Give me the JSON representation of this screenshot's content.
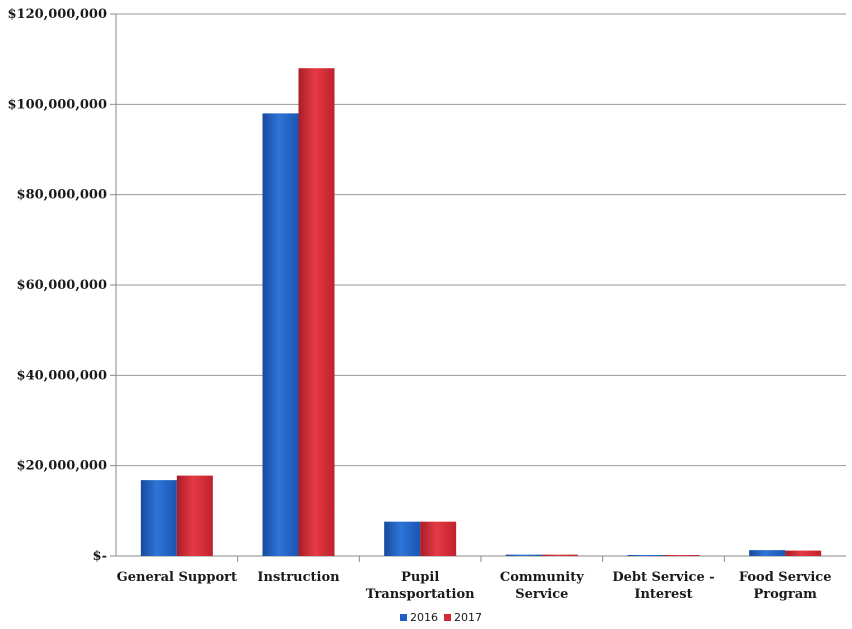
{
  "chart_data": {
    "type": "bar",
    "categories": [
      [
        "General Support"
      ],
      [
        "Instruction"
      ],
      [
        "Pupil",
        "Transportation"
      ],
      [
        "Community",
        "Service"
      ],
      [
        "Debt Service -",
        "Interest"
      ],
      [
        "Food Service",
        "Program"
      ]
    ],
    "series": [
      {
        "name": "2016",
        "color": "#1f5fc4",
        "values": [
          16800000,
          98000000,
          7600000,
          300000,
          100000,
          1300000
        ]
      },
      {
        "name": "2017",
        "color": "#d42a35",
        "values": [
          17800000,
          108000000,
          7600000,
          300000,
          100000,
          1200000
        ]
      }
    ],
    "ylim": [
      0,
      120000000
    ],
    "yticks": [
      {
        "value": 0,
        "label": "$-"
      },
      {
        "value": 20000000,
        "label": "$20,000,000"
      },
      {
        "value": 40000000,
        "label": "$40,000,000"
      },
      {
        "value": 60000000,
        "label": "$60,000,000"
      },
      {
        "value": 80000000,
        "label": "$80,000,000"
      },
      {
        "value": 100000000,
        "label": "$100,000,000"
      },
      {
        "value": 120000000,
        "label": "$120,000,000"
      }
    ],
    "grid": true,
    "legend_position": "bottom"
  }
}
